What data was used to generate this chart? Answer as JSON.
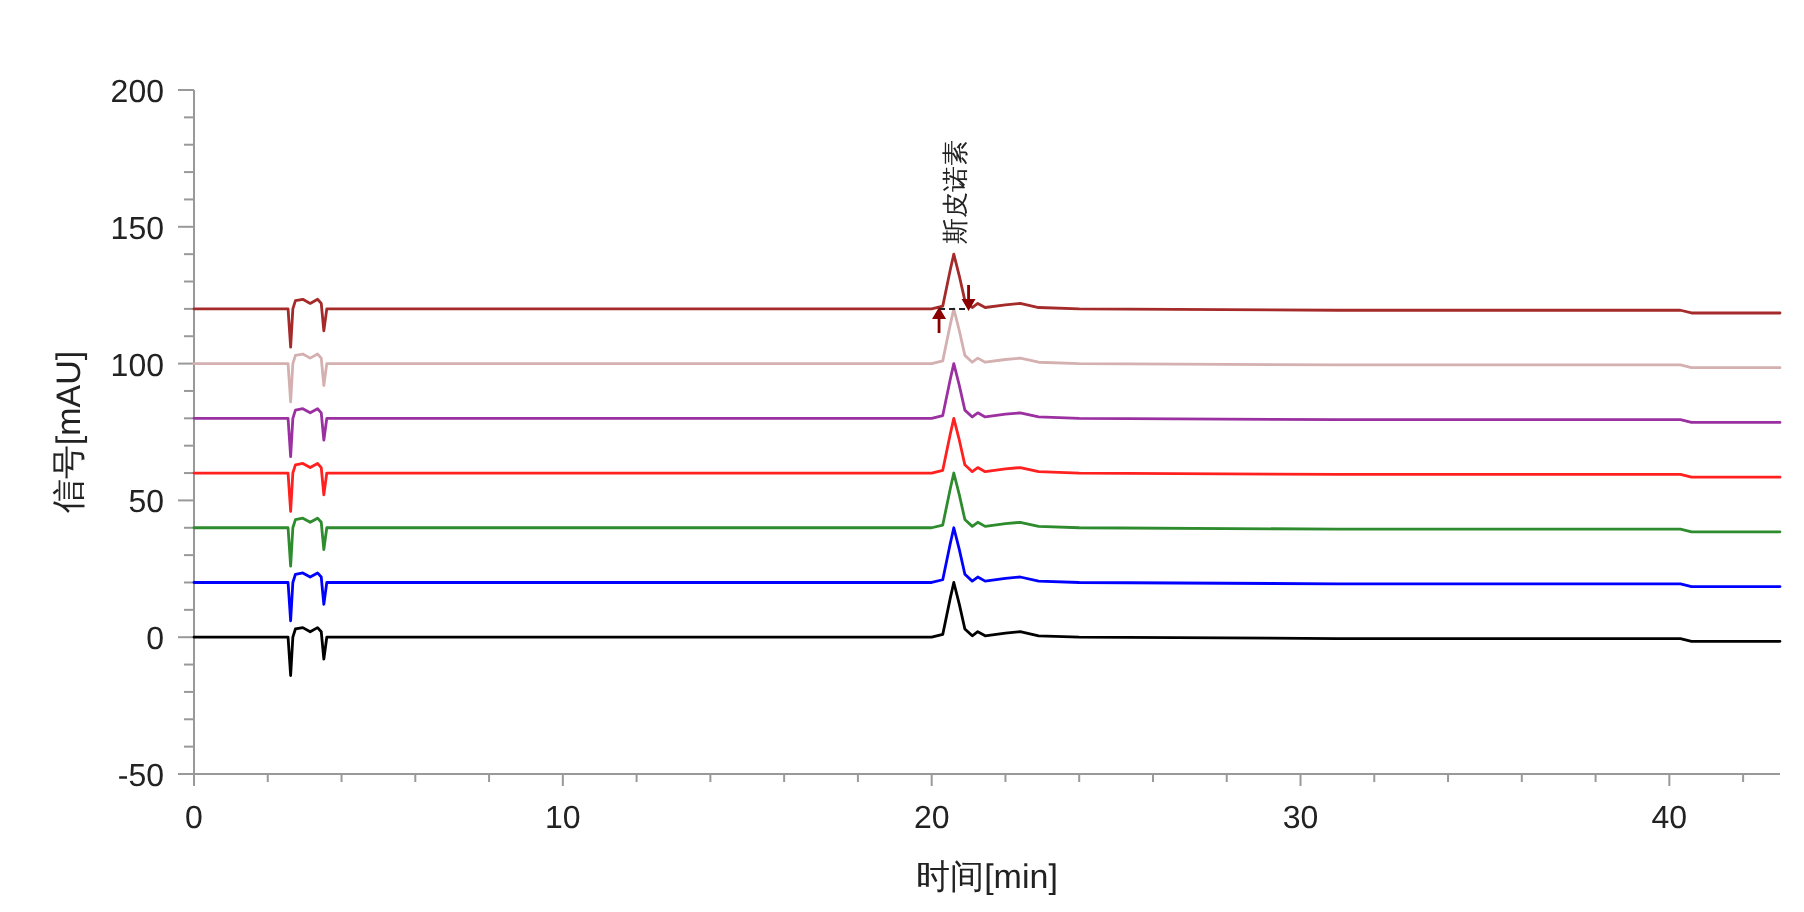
{
  "chart_data": {
    "type": "line",
    "xlabel": "时间[min]",
    "ylabel": "信号[mAU]",
    "annotations": [
      {
        "text": "斯皮诺素",
        "x": 20.6,
        "y": 140
      }
    ],
    "x": [
      0,
      2.55,
      2.62,
      2.68,
      2.75,
      2.95,
      3.15,
      3.35,
      3.45,
      3.52,
      3.6,
      20.0,
      20.3,
      20.5,
      20.6,
      20.75,
      20.9,
      21.1,
      21.25,
      21.45,
      22.0,
      22.4,
      22.9,
      24,
      31,
      40.3,
      40.6,
      43
    ],
    "series": [
      {
        "color": "#000000",
        "values": [
          0,
          0,
          -14,
          0,
          3,
          3.5,
          2,
          3.5,
          2,
          -8,
          0,
          0,
          1,
          14,
          20,
          12,
          3,
          0.5,
          2,
          0.5,
          1.5,
          2,
          0.5,
          0,
          -0.5,
          -0.5,
          -1.5,
          -1.5
        ]
      },
      {
        "color": "#0000ff",
        "values": [
          20,
          20,
          6,
          20,
          23,
          23.5,
          22,
          23.5,
          22,
          12,
          20,
          20,
          21,
          34,
          40,
          32,
          23,
          20.5,
          22,
          20.5,
          21.5,
          22,
          20.5,
          20,
          19.5,
          19.5,
          18.5,
          18.5
        ]
      },
      {
        "color": "#2e8b2e",
        "values": [
          40,
          40,
          26,
          40,
          43,
          43.5,
          42,
          43.5,
          42,
          32,
          40,
          40,
          41,
          54,
          60,
          52,
          43,
          40.5,
          42,
          40.5,
          41.5,
          42,
          40.5,
          40,
          39.5,
          39.5,
          38.5,
          38.5
        ]
      },
      {
        "color": "#ff2020",
        "values": [
          60,
          60,
          46,
          60,
          63,
          63.5,
          62,
          63.5,
          62,
          52,
          60,
          60,
          61,
          74,
          80,
          72,
          63,
          60.5,
          62,
          60.5,
          61.5,
          62,
          60.5,
          60,
          59.5,
          59.5,
          58.5,
          58.5
        ]
      },
      {
        "color": "#9b30a0",
        "values": [
          80,
          80,
          66,
          80,
          83,
          83.5,
          82,
          83.5,
          82,
          72,
          80,
          80,
          81,
          94,
          100,
          92,
          83,
          80.5,
          82,
          80.5,
          81.5,
          82,
          80.5,
          80,
          79.5,
          79.5,
          78.5,
          78.5
        ]
      },
      {
        "color": "#d4b0b0",
        "values": [
          100,
          100,
          86,
          100,
          103,
          103.5,
          102,
          103.5,
          102,
          92,
          100,
          100,
          101,
          114,
          120,
          112,
          103,
          100.5,
          102,
          100.5,
          101.5,
          102,
          100.5,
          100,
          99.5,
          99.5,
          98.5,
          98.5
        ]
      },
      {
        "color": "#a52a2a",
        "values": [
          120,
          120,
          106,
          120,
          123,
          123.5,
          122,
          123.5,
          122,
          112,
          120,
          120,
          121,
          134,
          140,
          132,
          123,
          120.5,
          122,
          120.5,
          121.5,
          122,
          120.5,
          120,
          119.5,
          119.5,
          118.5,
          118.5
        ]
      }
    ],
    "xlim": [
      0,
      43
    ],
    "xticks": [
      0,
      {
        "value": 2,
        "label": null
      },
      {
        "value": 4,
        "label": null
      },
      {
        "value": 6,
        "label": null
      },
      {
        "value": 8,
        "label": null
      },
      10,
      {
        "value": 12,
        "label": null
      },
      {
        "value": 14,
        "label": null
      },
      {
        "value": 16,
        "label": null
      },
      {
        "value": 18,
        "label": null
      },
      20,
      {
        "value": 22,
        "label": null
      },
      {
        "value": 24,
        "label": null
      },
      {
        "value": 26,
        "label": null
      },
      {
        "value": 28,
        "label": null
      },
      30,
      {
        "value": 32,
        "label": null
      },
      {
        "value": 34,
        "label": null
      },
      {
        "value": 36,
        "label": null
      },
      {
        "value": 38,
        "label": null
      },
      40,
      {
        "value": 42,
        "label": null
      }
    ],
    "ylim": [
      -50,
      200
    ],
    "yticks": [
      -50,
      {
        "value": -40,
        "label": null
      },
      {
        "value": -30,
        "label": null
      },
      {
        "value": -20,
        "label": null
      },
      {
        "value": -10,
        "label": null
      },
      0,
      {
        "value": 10,
        "label": null
      },
      {
        "value": 20,
        "label": null
      },
      {
        "value": 30,
        "label": null
      },
      {
        "value": 40,
        "label": null
      },
      50,
      {
        "value": 60,
        "label": null
      },
      {
        "value": 70,
        "label": null
      },
      {
        "value": 80,
        "label": null
      },
      {
        "value": 90,
        "label": null
      },
      100,
      {
        "value": 110,
        "label": null
      },
      {
        "value": 120,
        "label": null
      },
      {
        "value": 130,
        "label": null
      },
      {
        "value": 140,
        "label": null
      },
      150,
      {
        "value": 160,
        "label": null
      },
      {
        "value": 170,
        "label": null
      },
      {
        "value": 180,
        "label": null
      },
      {
        "value": 190,
        "label": null
      },
      200
    ],
    "grid": false,
    "marker": "none",
    "line_style": "solid"
  }
}
